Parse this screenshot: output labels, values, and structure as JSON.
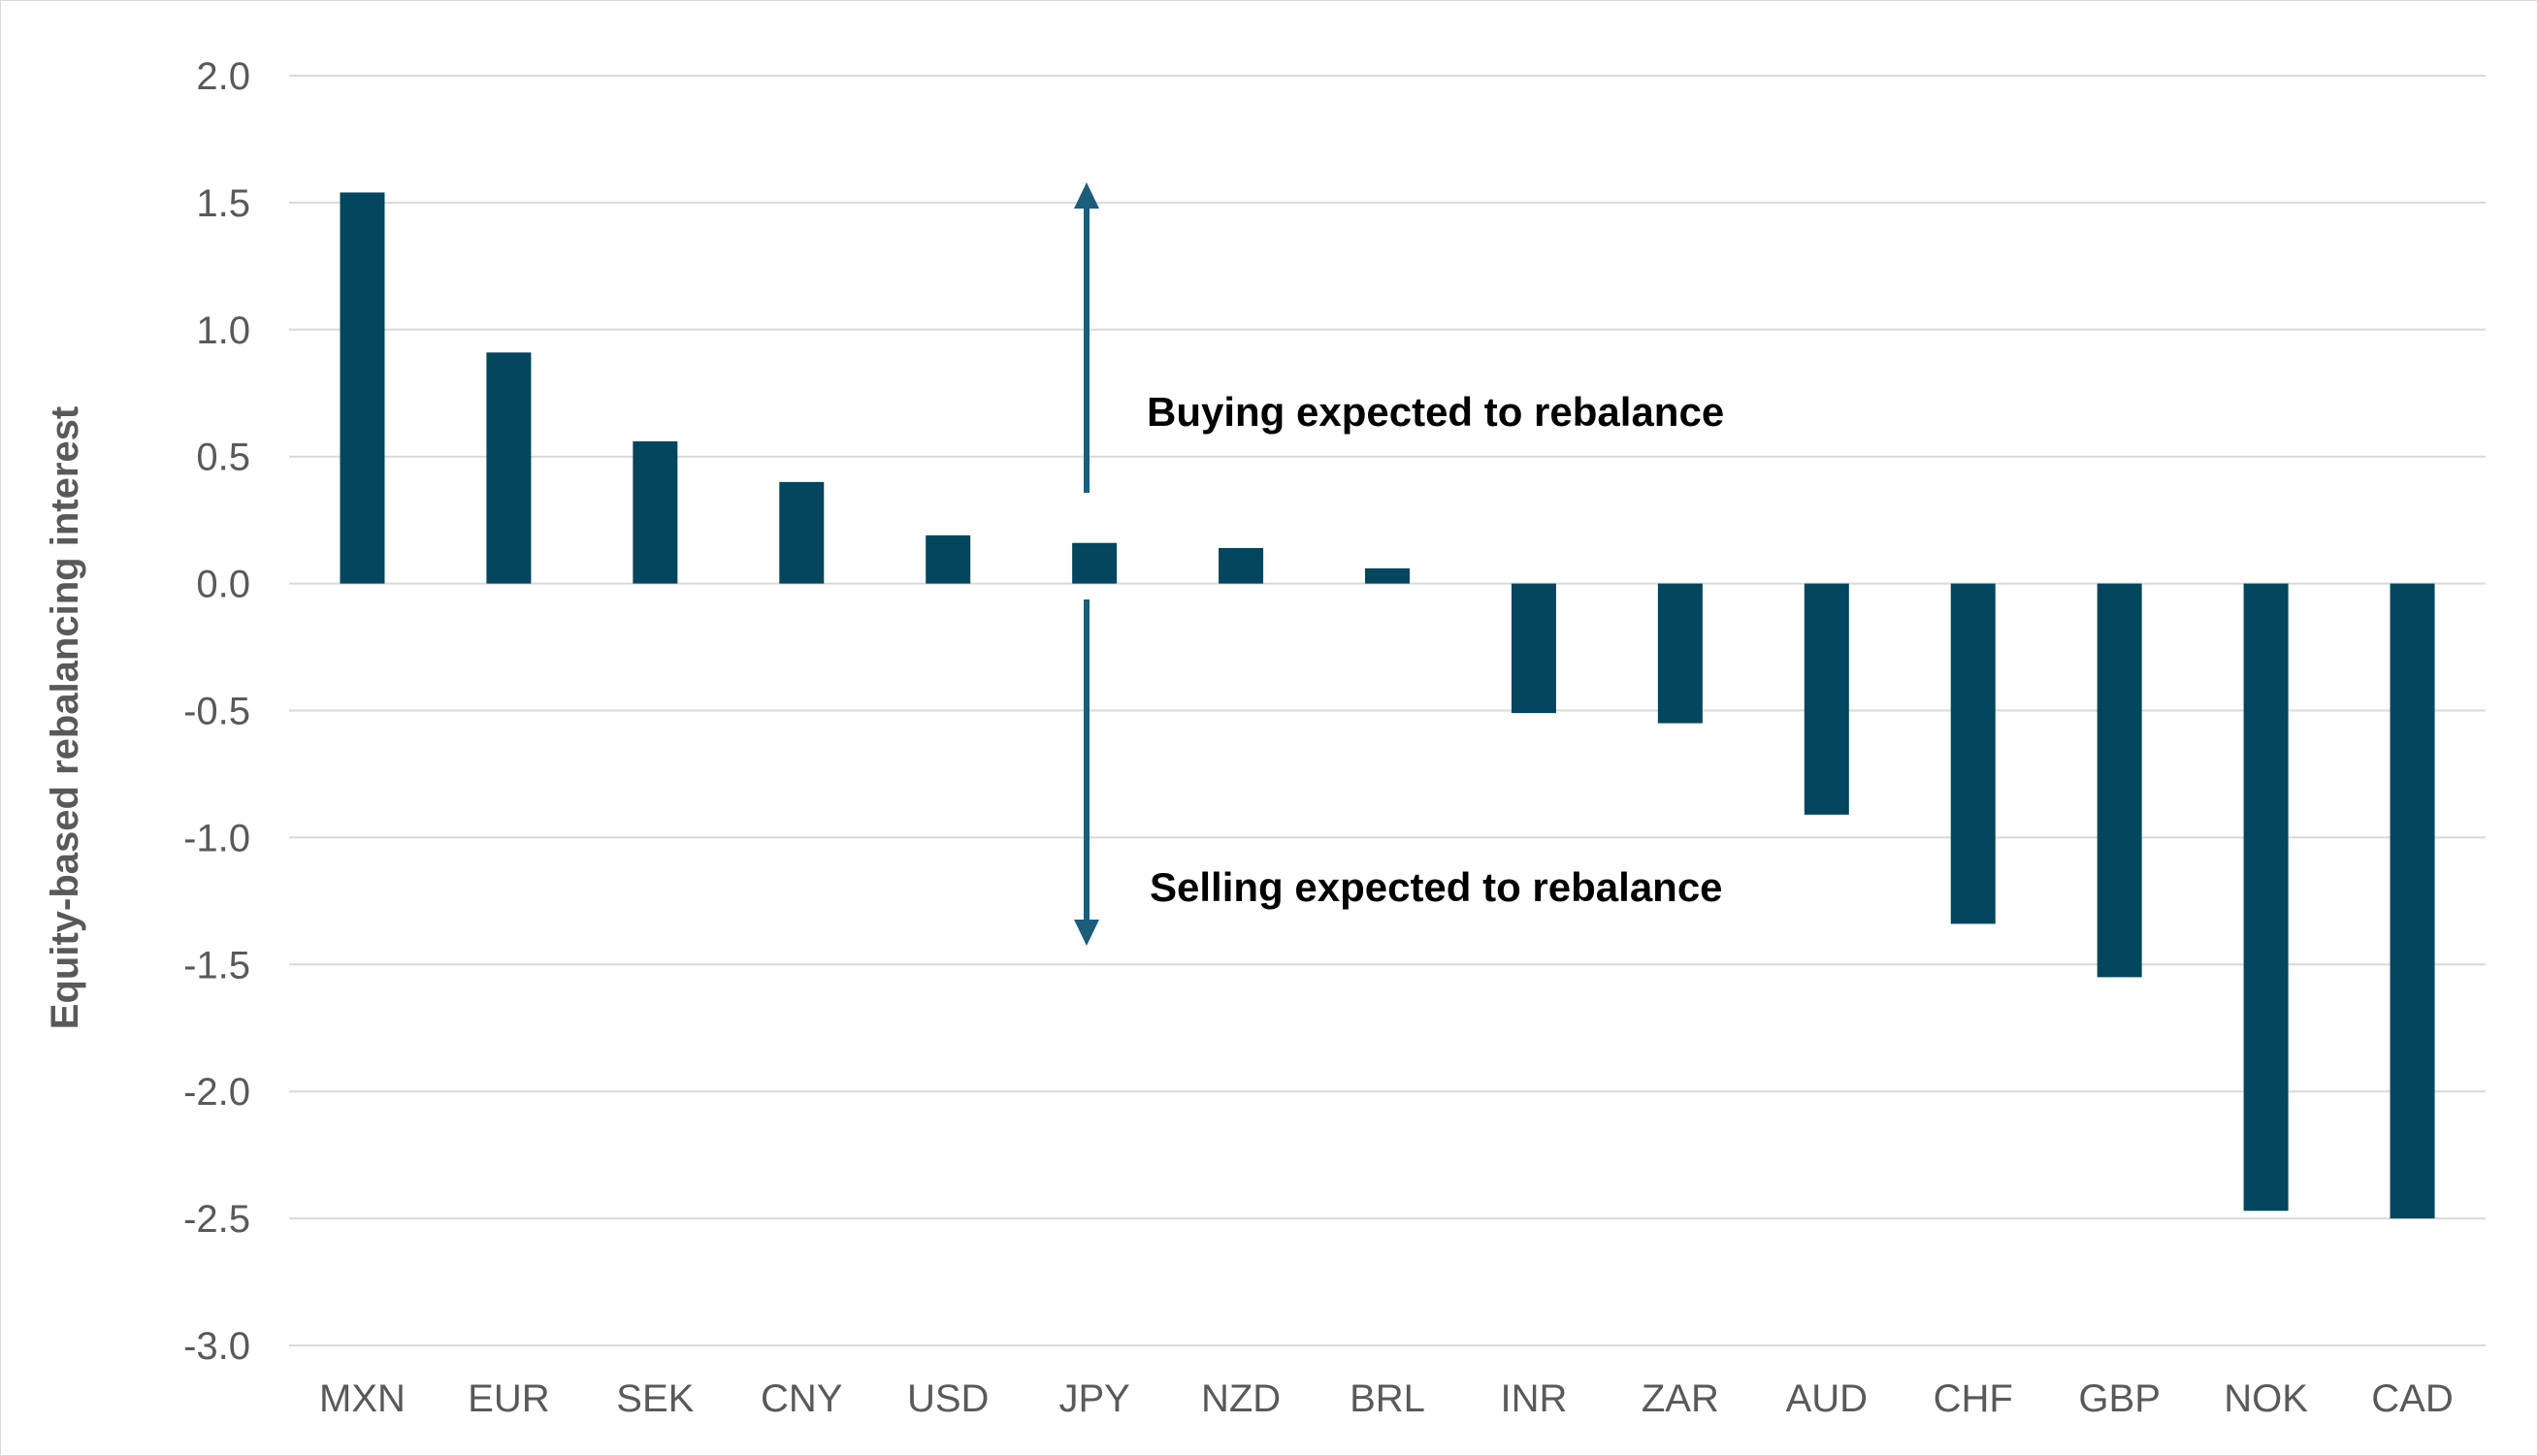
{
  "colors": {
    "bar": "#03465e",
    "arrow": "#1a5e7a",
    "grid": "#d9d9d9",
    "text": "#595959"
  },
  "annotations": {
    "buying": "Buying expected to rebalance",
    "selling": "Selling expected to rebalance"
  },
  "chart_data": {
    "type": "bar",
    "title": "",
    "xlabel": "",
    "ylabel": "Equity-based rebalancing interest",
    "ylim": [
      -3.0,
      2.0
    ],
    "yticks": [
      "2.0",
      "1.5",
      "1.0",
      "0.5",
      "0.0",
      "-0.5",
      "-1.0",
      "-1.5",
      "-2.0",
      "-2.5",
      "-3.0"
    ],
    "grid": true,
    "legend": "none",
    "categories": [
      "MXN",
      "EUR",
      "SEK",
      "CNY",
      "USD",
      "JPY",
      "NZD",
      "BRL",
      "INR",
      "ZAR",
      "AUD",
      "CHF",
      "GBP",
      "NOK",
      "CAD"
    ],
    "values": [
      1.54,
      0.91,
      0.56,
      0.4,
      0.19,
      0.16,
      0.14,
      0.06,
      -0.51,
      -0.55,
      -0.91,
      -1.34,
      -1.55,
      -2.47,
      -2.5
    ]
  }
}
